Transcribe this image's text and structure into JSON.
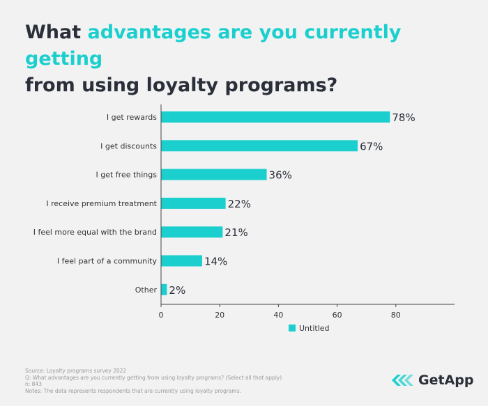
{
  "title": {
    "part1": "What ",
    "part2": "advantages are you currently getting",
    "part3": "from using loyalty programs?"
  },
  "chart_data": {
    "type": "bar",
    "orientation": "horizontal",
    "categories": [
      "I get rewards",
      "I get discounts",
      "I get free things",
      "I receive premium treatment",
      "I feel more equal with the brand",
      "I feel part of a community",
      "Other"
    ],
    "series": [
      {
        "name": "Untitled",
        "values": [
          78,
          67,
          36,
          22,
          21,
          14,
          2
        ]
      }
    ],
    "data_labels": [
      "78%",
      "67%",
      "36%",
      "22%",
      "21%",
      "14%",
      "2%"
    ],
    "xticks": [
      0,
      20,
      40,
      60,
      80
    ],
    "xlim": [
      0,
      100
    ],
    "legend": "bottom-center",
    "grid": false,
    "bar_color": "#1ccfcf"
  },
  "footer": {
    "source": "Source: Loyalty programs survey 2022",
    "question": "Q: What advantages are you currently getting from using loyalty programs? (Select all that apply)",
    "n": "n: 843",
    "notes": "Notes: The data represents respondents that are currently using loyalty programs."
  },
  "logo": {
    "text": "GetApp",
    "icon": "getapp-chevrons-icon"
  }
}
